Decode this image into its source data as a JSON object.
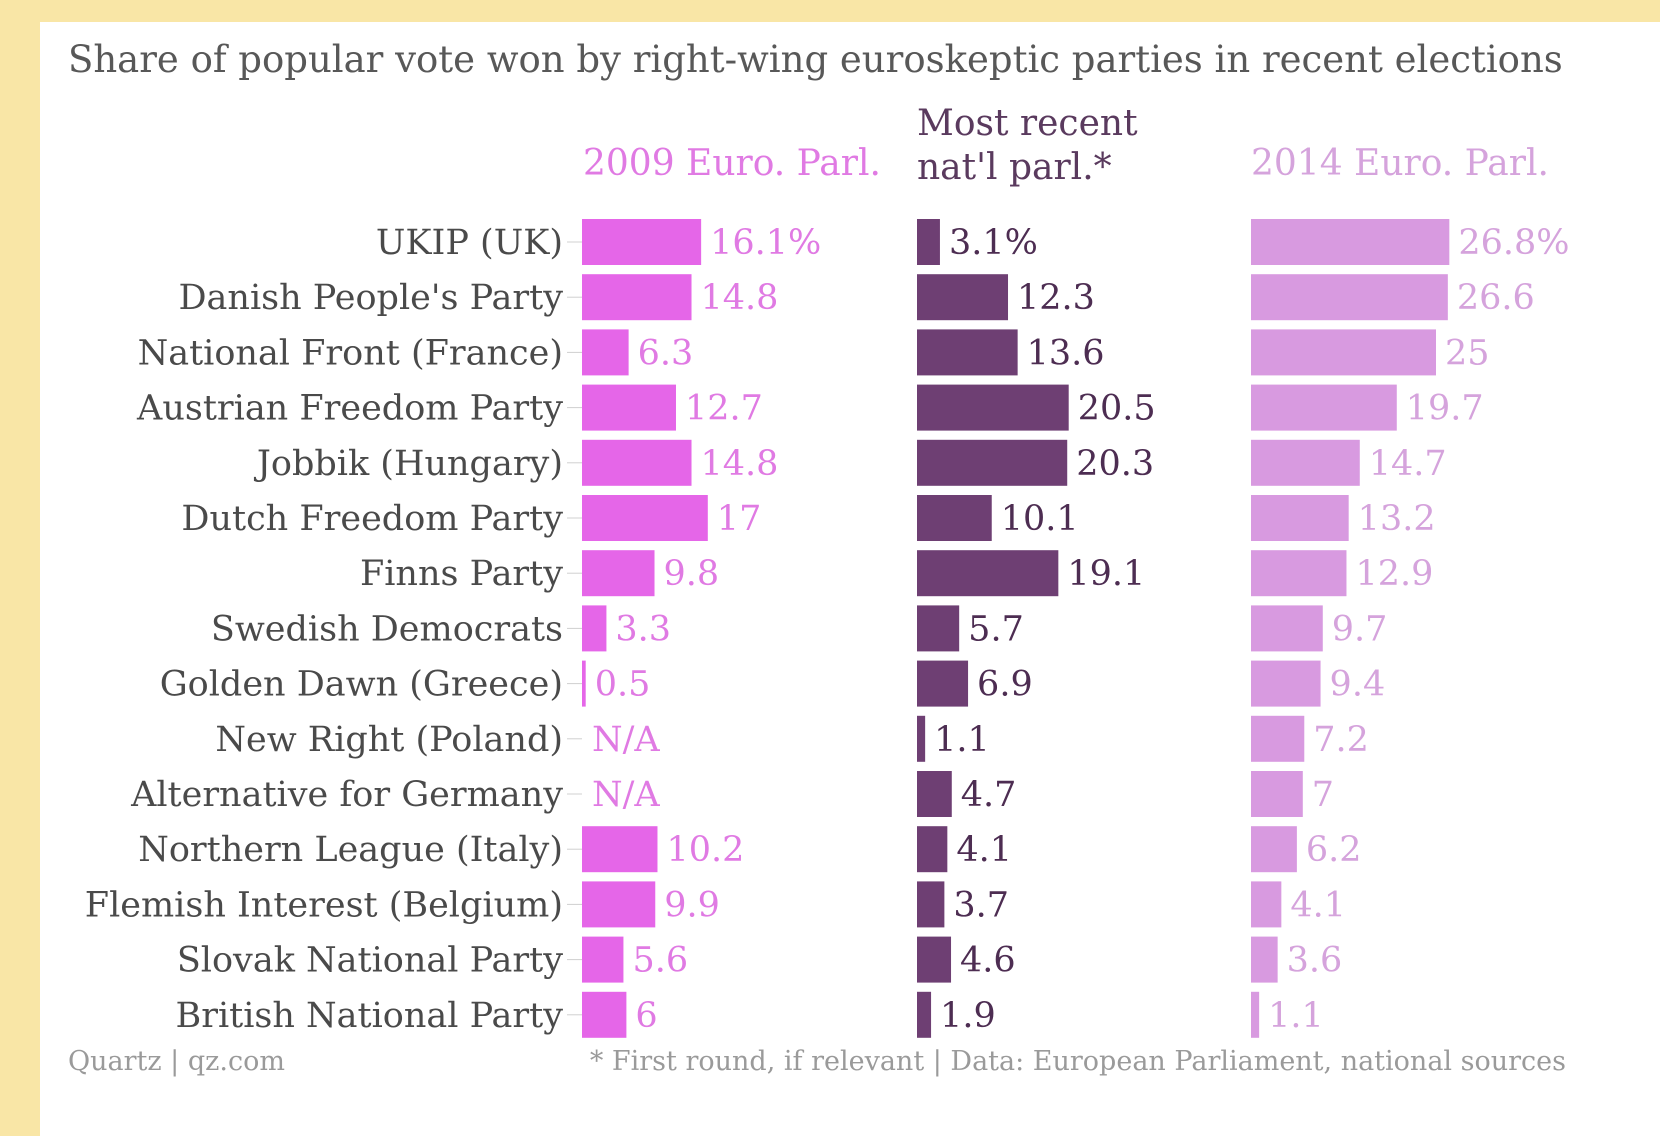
{
  "chart_data": {
    "type": "bar",
    "title": "Share of popular vote won by right-wing euroskeptic parties in recent elections",
    "categories": [
      "UKIP (UK)",
      "Danish People's Party",
      "National Front (France)",
      "Austrian Freedom Party",
      "Jobbik (Hungary)",
      "Dutch Freedom Party",
      "Finns Party",
      "Swedish Democrats",
      "Golden Dawn (Greece)",
      "New Right (Poland)",
      "Alternative for Germany",
      "Northern League (Italy)",
      "Flemish Interest (Belgium)",
      "Slovak National Party",
      "British National Party"
    ],
    "series": [
      {
        "name": "2009 Euro. Parl.",
        "color": "#e566e8",
        "label_color": "#e07ae3",
        "values": [
          16.1,
          14.8,
          6.3,
          12.7,
          14.8,
          17,
          9.8,
          3.3,
          0.5,
          null,
          null,
          10.2,
          9.9,
          5.6,
          6
        ],
        "labels": [
          "16.1%",
          "14.8",
          "6.3",
          "12.7",
          "14.8",
          "17",
          "9.8",
          "3.3",
          "0.5",
          "N/A",
          "N/A",
          "10.2",
          "9.9",
          "5.6",
          "6"
        ]
      },
      {
        "name_lines": [
          "Most recent",
          "nat'l parl.*"
        ],
        "color": "#6e3f73",
        "label_color": "#4d2d52",
        "values": [
          3.1,
          12.3,
          13.6,
          20.5,
          20.3,
          10.1,
          19.1,
          5.7,
          6.9,
          1.1,
          4.7,
          4.1,
          3.7,
          4.6,
          1.9
        ],
        "labels": [
          "3.1%",
          "12.3",
          "13.6",
          "20.5",
          "20.3",
          "10.1",
          "19.1",
          "5.7",
          "6.9",
          "1.1",
          "4.7",
          "4.1",
          "3.7",
          "4.6",
          "1.9"
        ]
      },
      {
        "name": "2014 Euro. Parl.",
        "color": "#d89ae0",
        "label_color": "#d5a3dc",
        "values": [
          26.8,
          26.6,
          25,
          19.7,
          14.7,
          13.2,
          12.9,
          9.7,
          9.4,
          7.2,
          7,
          6.2,
          4.1,
          3.6,
          1.1
        ],
        "labels": [
          "26.8%",
          "26.6",
          "25",
          "19.7",
          "14.7",
          "13.2",
          "12.9",
          "9.7",
          "9.4",
          "7.2",
          "7",
          "6.2",
          "4.1",
          "3.6",
          "1.1"
        ]
      }
    ],
    "footer_left": "Quartz | qz.com",
    "footer_right": "* First round, if relevant | Data: European Parliament, national sources"
  }
}
